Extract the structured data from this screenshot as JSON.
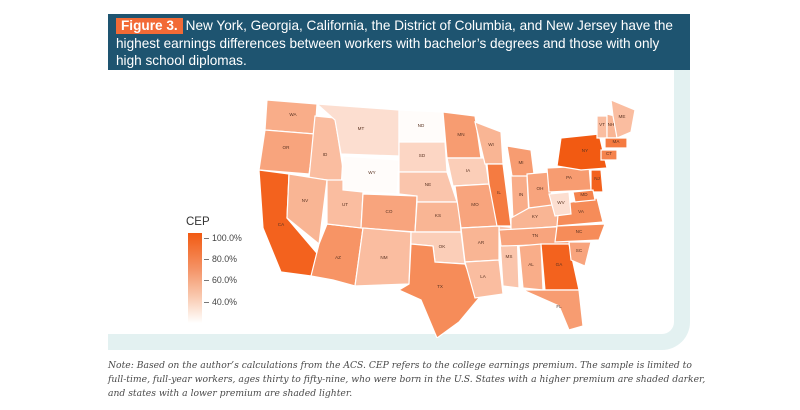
{
  "figure": {
    "label": "Figure 3.",
    "title": "New York, Georgia, California, the District of Columbia, and New Jersey have the highest earnings differences between workers with bachelor’s degrees and those with only high school diplomas."
  },
  "legend": {
    "title": "CEP",
    "ticks": [
      "100.0%",
      "80.0%",
      "60.0%",
      "40.0%"
    ]
  },
  "colors": {
    "header_bg": "#1e5470",
    "label_bg": "#f26a36",
    "frame_accent": "#e3f1f1",
    "scale_high": "#f25a12",
    "scale_low": "#ffffff"
  },
  "states": [
    {
      "abbr": "WA",
      "shade": 0.5
    },
    {
      "abbr": "OR",
      "shade": 0.55
    },
    {
      "abbr": "CA",
      "shade": 0.95
    },
    {
      "abbr": "ID",
      "shade": 0.4
    },
    {
      "abbr": "NV",
      "shade": 0.45
    },
    {
      "abbr": "AZ",
      "shade": 0.65
    },
    {
      "abbr": "MT",
      "shade": 0.2
    },
    {
      "abbr": "WY",
      "shade": 0.02
    },
    {
      "abbr": "UT",
      "shade": 0.4
    },
    {
      "abbr": "CO",
      "shade": 0.55
    },
    {
      "abbr": "NM",
      "shade": 0.4
    },
    {
      "abbr": "ND",
      "shade": 0.02
    },
    {
      "abbr": "SD",
      "shade": 0.25
    },
    {
      "abbr": "NE",
      "shade": 0.35
    },
    {
      "abbr": "KS",
      "shade": 0.45
    },
    {
      "abbr": "OK",
      "shade": 0.3
    },
    {
      "abbr": "TX",
      "shade": 0.7
    },
    {
      "abbr": "MN",
      "shade": 0.6
    },
    {
      "abbr": "IA",
      "shade": 0.3
    },
    {
      "abbr": "MO",
      "shade": 0.55
    },
    {
      "abbr": "AR",
      "shade": 0.45
    },
    {
      "abbr": "LA",
      "shade": 0.4
    },
    {
      "abbr": "WI",
      "shade": 0.45
    },
    {
      "abbr": "IL",
      "shade": 0.8
    },
    {
      "abbr": "MS",
      "shade": 0.35
    },
    {
      "abbr": "MI",
      "shade": 0.6
    },
    {
      "abbr": "IN",
      "shade": 0.5
    },
    {
      "abbr": "OH",
      "shade": 0.55
    },
    {
      "abbr": "KY",
      "shade": 0.45
    },
    {
      "abbr": "TN",
      "shade": 0.55
    },
    {
      "abbr": "AL",
      "shade": 0.5
    },
    {
      "abbr": "GA",
      "shade": 0.95
    },
    {
      "abbr": "FL",
      "shade": 0.6
    },
    {
      "abbr": "SC",
      "shade": 0.55
    },
    {
      "abbr": "NC",
      "shade": 0.7
    },
    {
      "abbr": "VA",
      "shade": 0.7
    },
    {
      "abbr": "WV",
      "shade": 0.2
    },
    {
      "abbr": "PA",
      "shade": 0.6
    },
    {
      "abbr": "NY",
      "shade": 1.0
    },
    {
      "abbr": "VT",
      "shade": 0.4
    },
    {
      "abbr": "NH",
      "shade": 0.45
    },
    {
      "abbr": "ME",
      "shade": 0.4
    },
    {
      "abbr": "MA",
      "shade": 0.8
    },
    {
      "abbr": "CT",
      "shade": 0.75
    },
    {
      "abbr": "NJ",
      "shade": 0.95
    },
    {
      "abbr": "MD",
      "shade": 0.75
    }
  ],
  "note": "Note: Based on the author’s calculations from the ACS. CEP refers to the college earnings premium. The sample is limited to full-time, full-year workers, ages thirty to fifty-nine, who were born in the U.S. States with a higher premium are shaded darker, and states with a lower premium are shaded lighter."
}
